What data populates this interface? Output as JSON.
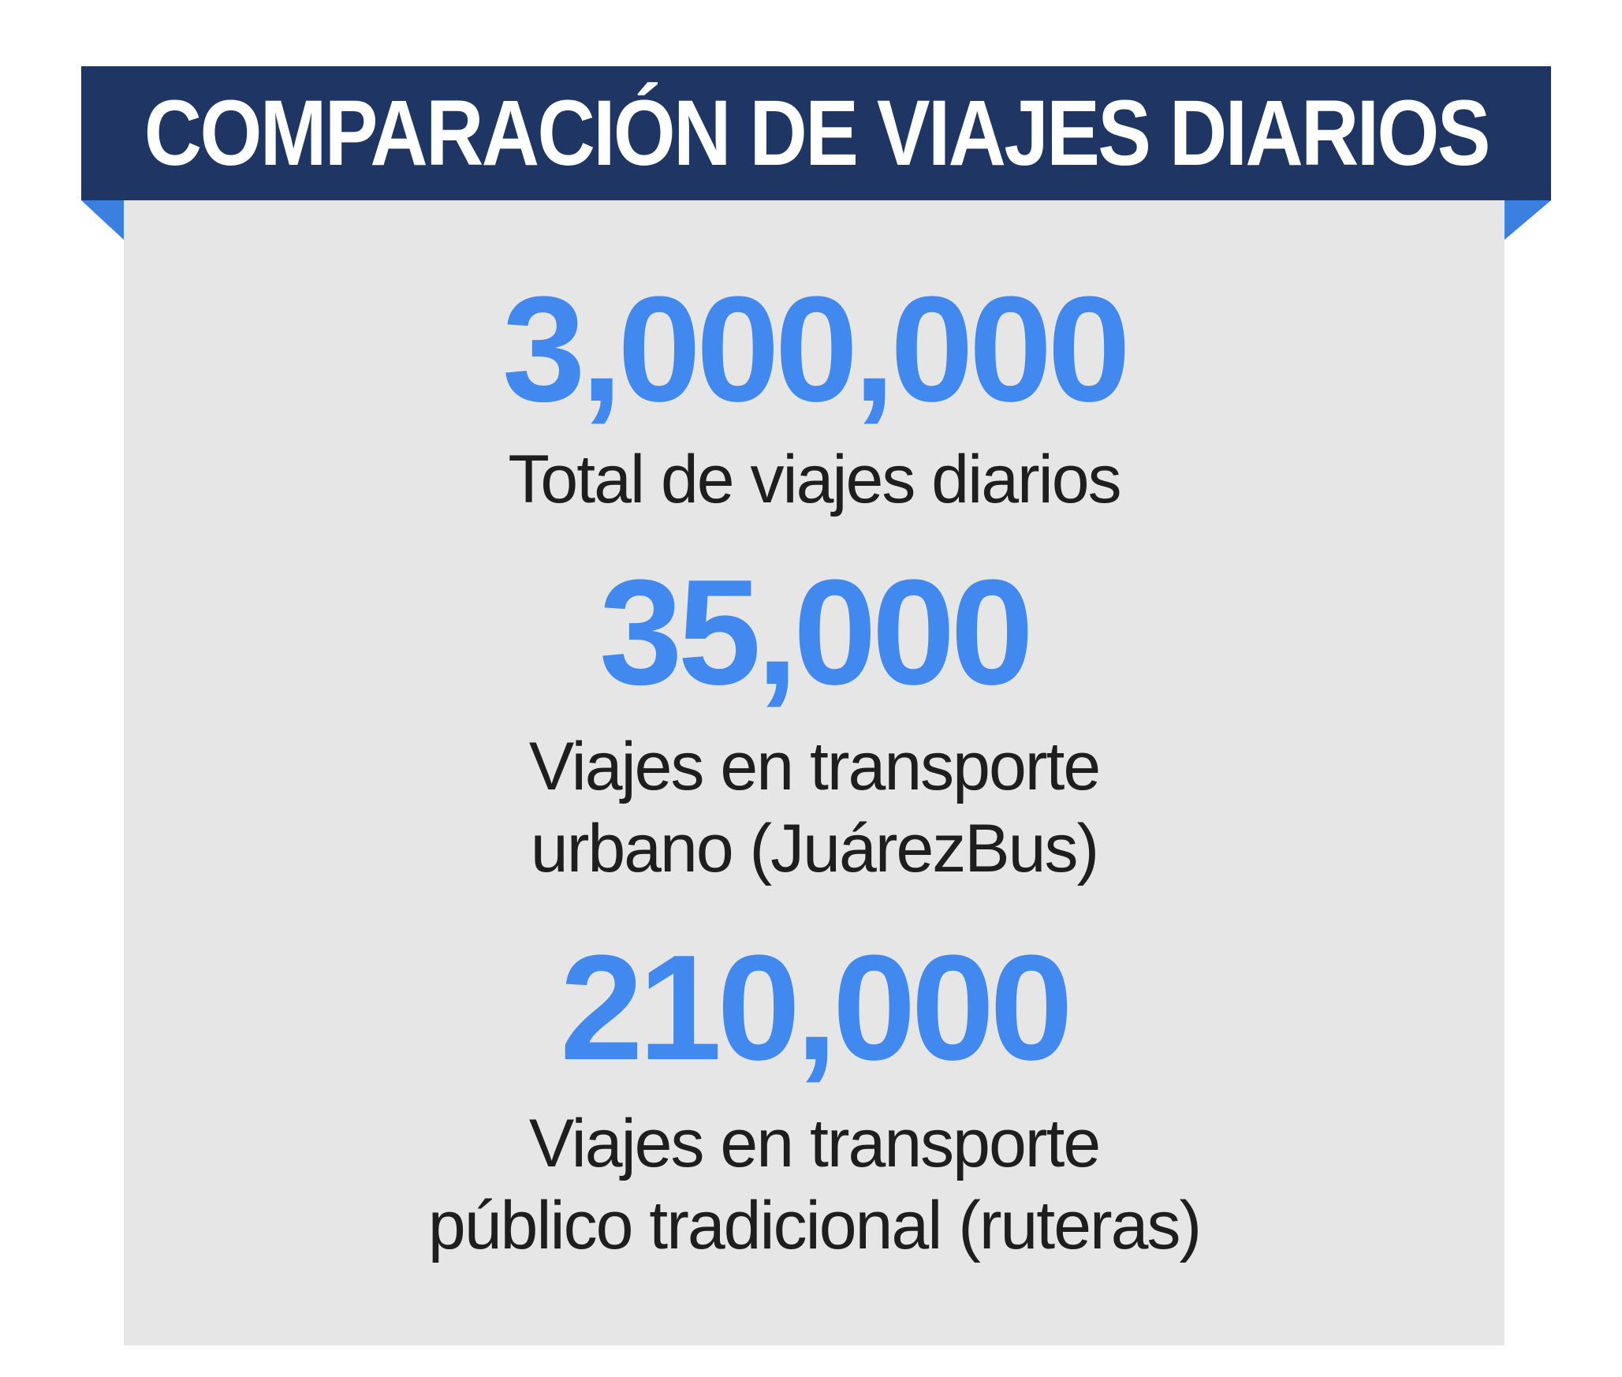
{
  "header": {
    "title": "COMPARACIÓN DE VIAJES DIARIOS"
  },
  "colors": {
    "banner": "#1f3664",
    "accent": "#4188ef",
    "card": "#e6e6e6",
    "label_text": "#1e1e1e"
  },
  "stats": [
    {
      "value": "3,000,000",
      "label_lines": [
        "Total de viajes diarios"
      ]
    },
    {
      "value": "35,000",
      "label_lines": [
        "Viajes en transporte",
        "urbano (JuárezBus)"
      ]
    },
    {
      "value": "210,000",
      "label_lines": [
        "Viajes en transporte",
        "público tradicional (ruteras)"
      ]
    }
  ]
}
